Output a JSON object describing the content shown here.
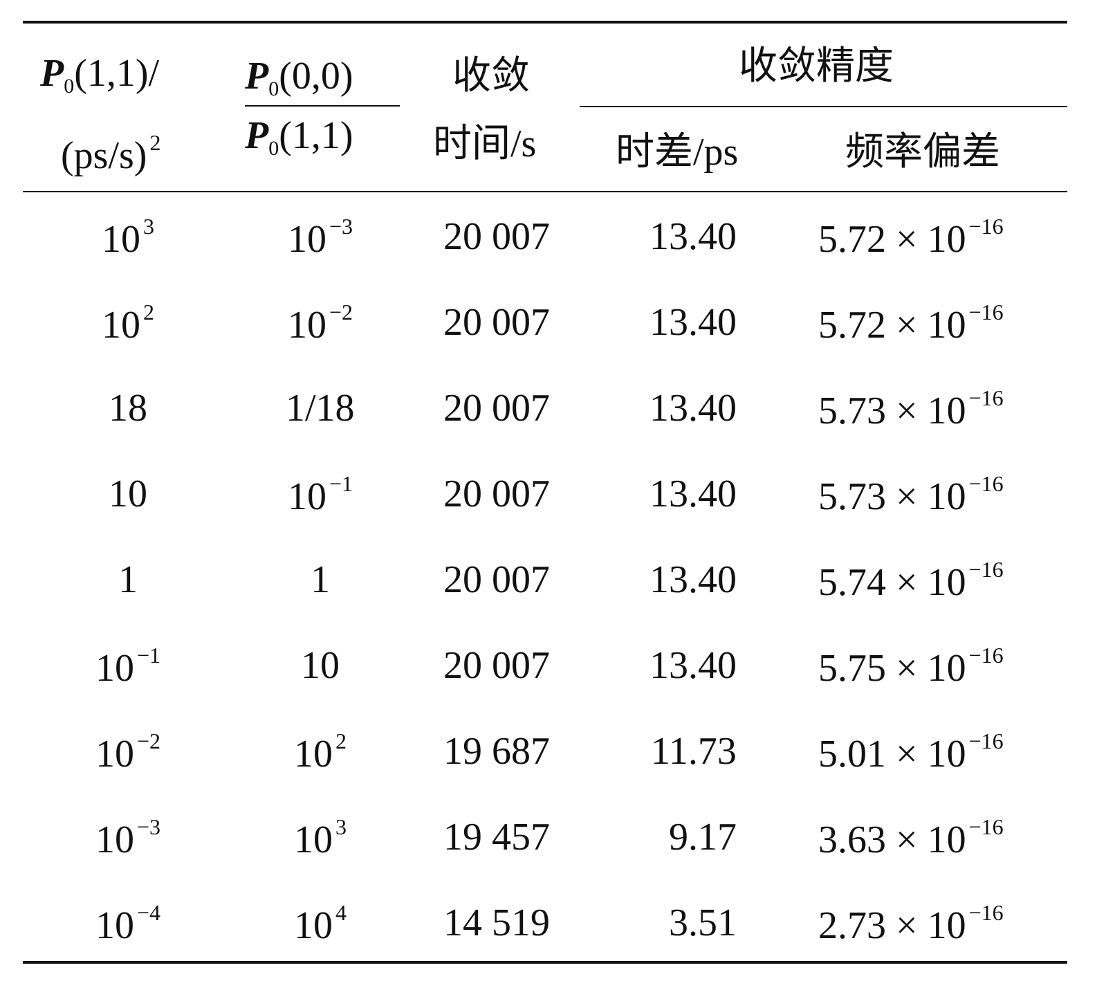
{
  "header": {
    "col1": {
      "symbol": "P",
      "sub": "0",
      "rest": "(1,1)/",
      "line2": "(ps/s)",
      "line2_sup": "2"
    },
    "col2": {
      "num_symbol": "P",
      "num_sub": "0",
      "num_rest": "(0,0)",
      "den_symbol": "P",
      "den_sub": "0",
      "den_rest": "(1,1)"
    },
    "col3": {
      "line1": "收敛",
      "line2": "时间/s"
    },
    "group": "收敛精度",
    "col4": "时差/ps",
    "col5": "频率偏差"
  },
  "table": {
    "rows": [
      [
        {
          "base": "10",
          "sup": "3"
        },
        {
          "base": "10",
          "sup": "−3"
        },
        "20 007",
        "13.40",
        {
          "base": "5.72 × 10",
          "sup": "−16"
        }
      ],
      [
        {
          "base": "10",
          "sup": "2"
        },
        {
          "base": "10",
          "sup": "−2"
        },
        "20 007",
        "13.40",
        {
          "base": "5.72 × 10",
          "sup": "−16"
        }
      ],
      [
        "18",
        "1/18",
        "20 007",
        "13.40",
        {
          "base": "5.73 × 10",
          "sup": "−16"
        }
      ],
      [
        "10",
        {
          "base": "10",
          "sup": "−1"
        },
        "20 007",
        "13.40",
        {
          "base": "5.73 × 10",
          "sup": "−16"
        }
      ],
      [
        "1",
        "1",
        "20 007",
        "13.40",
        {
          "base": "5.74 × 10",
          "sup": "−16"
        }
      ],
      [
        {
          "base": "10",
          "sup": "−1"
        },
        "10",
        "20 007",
        "13.40",
        {
          "base": "5.75 × 10",
          "sup": "−16"
        }
      ],
      [
        {
          "base": "10",
          "sup": "−2"
        },
        {
          "base": "10",
          "sup": "2"
        },
        "19 687",
        "11.73",
        {
          "base": "5.01 × 10",
          "sup": "−16"
        }
      ],
      [
        {
          "base": "10",
          "sup": "−3"
        },
        {
          "base": "10",
          "sup": "3"
        },
        "19 457",
        "9.17",
        {
          "base": "3.63 × 10",
          "sup": "−16"
        }
      ],
      [
        {
          "base": "10",
          "sup": "−4"
        },
        {
          "base": "10",
          "sup": "4"
        },
        "14 519",
        "3.51",
        {
          "base": "2.73 × 10",
          "sup": "−16"
        }
      ]
    ]
  }
}
